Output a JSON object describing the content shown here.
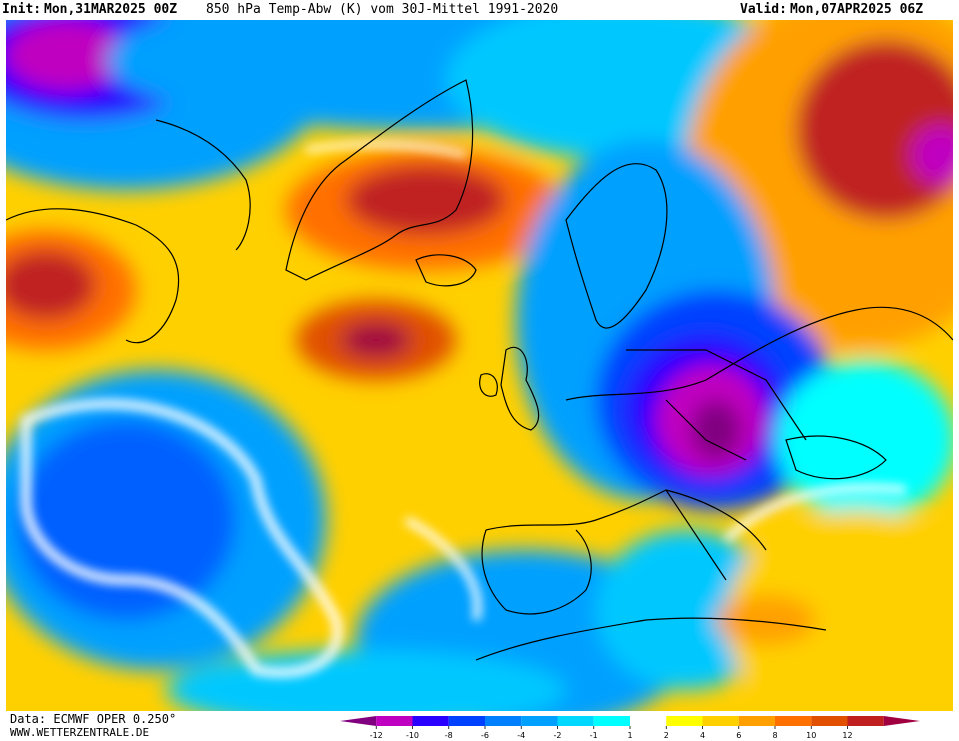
{
  "header": {
    "init_label": "Init:",
    "init_value": "Mon,31MAR2025 00Z",
    "title": "850 hPa Temp-Abw (K) vom 30J-Mittel 1991-2020",
    "valid_label": "Valid:",
    "valid_value": "Mon,07APR2025 06Z"
  },
  "footer": {
    "data_source": "Data: ECMWF OPER 0.250°",
    "website": "WWW.WETTERZENTRALE.DE"
  },
  "legend": {
    "ticks": [
      "-12",
      "-10",
      "-8",
      "-6",
      "-4",
      "-2",
      "-1",
      "1",
      "2",
      "4",
      "6",
      "8",
      "10",
      "12"
    ],
    "colors": [
      "#800080",
      "#c000c0",
      "#2a00ff",
      "#0040ff",
      "#0080ff",
      "#00a0ff",
      "#00d8ff",
      "#00ffff",
      "#ffffff",
      "#ffff00",
      "#ffd000",
      "#ffa000",
      "#ff7000",
      "#e05000",
      "#c02020",
      "#a00040"
    ]
  },
  "map": {
    "region": "North Atlantic / Europe",
    "variable": "850 hPa temperature anomaly (K)"
  }
}
